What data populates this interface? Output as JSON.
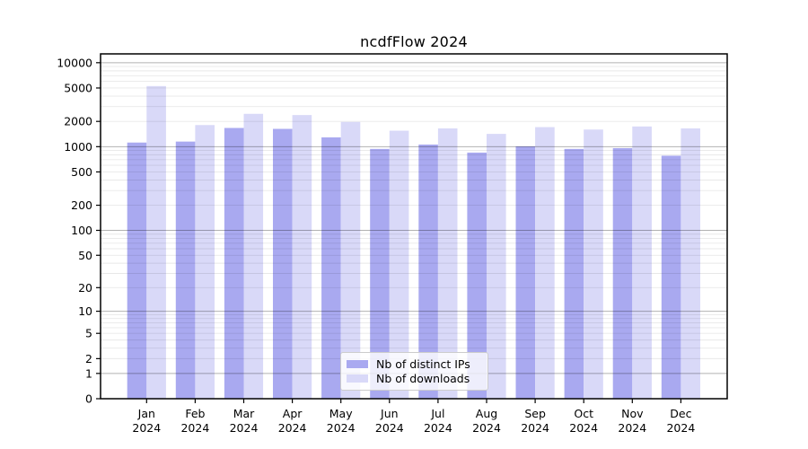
{
  "chart_data": {
    "type": "bar",
    "title": "ncdfFlow 2024",
    "scale": "log1p",
    "categories": [
      "Jan 2024",
      "Feb 2024",
      "Mar 2024",
      "Apr 2024",
      "May 2024",
      "Jun 2024",
      "Jul 2024",
      "Aug 2024",
      "Sep 2024",
      "Oct 2024",
      "Nov 2024",
      "Dec 2024"
    ],
    "series": [
      {
        "name": "Nb of distinct IPs",
        "color": "#a9a9f0",
        "values": [
          1120,
          1150,
          1670,
          1630,
          1290,
          940,
          1060,
          850,
          1010,
          940,
          960,
          780
        ]
      },
      {
        "name": "Nb of downloads",
        "color": "#d9d9f8",
        "values": [
          5270,
          1810,
          2460,
          2380,
          1970,
          1550,
          1650,
          1420,
          1710,
          1600,
          1740,
          1650
        ]
      }
    ],
    "y_ticks": [
      0,
      1,
      2,
      5,
      10,
      20,
      50,
      100,
      200,
      500,
      1000,
      2000,
      5000,
      10000
    ],
    "ylim": [
      0,
      12500
    ],
    "xlabel": "",
    "ylabel": "",
    "grid": "on",
    "grid_major_at": [
      1,
      10,
      100,
      1000,
      10000
    ],
    "grid_minor": "2-9 per decade",
    "legend_position": "lower center",
    "major_grid_color": "#b3b3b3",
    "minor_grid_color": "#e8e8e8",
    "spine_color": "#000000"
  }
}
